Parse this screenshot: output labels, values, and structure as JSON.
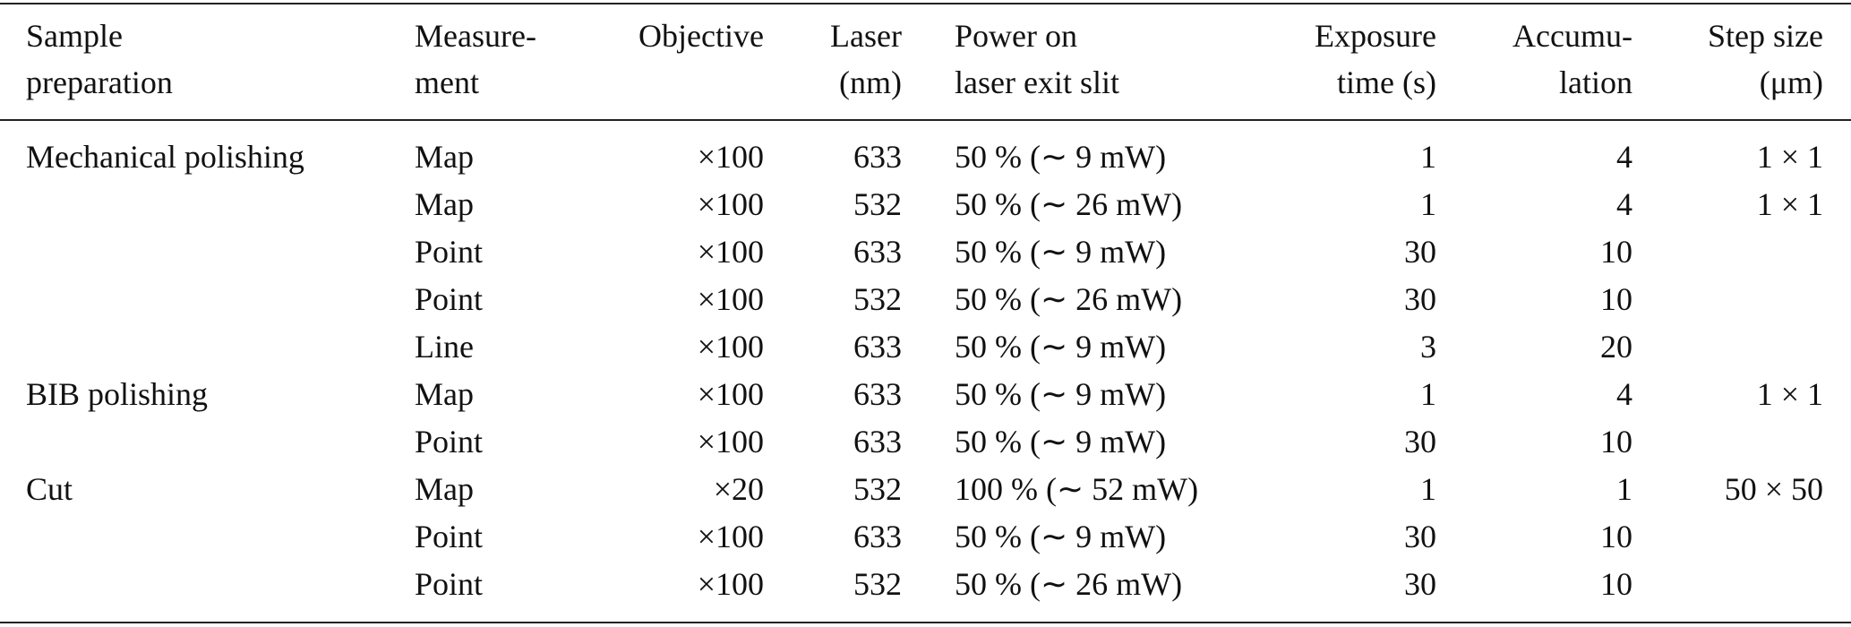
{
  "table": {
    "header": [
      [
        "Sample",
        "preparation"
      ],
      [
        "Measure-",
        "ment"
      ],
      [
        "Objective"
      ],
      [
        "Laser",
        "(nm)"
      ],
      [
        "Power on",
        "laser exit slit"
      ],
      [
        "Exposure",
        "time (s)"
      ],
      [
        "Accumu-",
        "lation"
      ],
      [
        "Step size",
        "(μm)"
      ]
    ],
    "rows": [
      {
        "sample": "Mechanical polishing",
        "measurement": "Map",
        "objective": "×100",
        "laser": 633,
        "power": "50 % (∼ 9 mW)",
        "exposure": 1,
        "accumulation": 4,
        "step": "1 × 1"
      },
      {
        "measurement": "Map",
        "objective": "×100",
        "laser": 532,
        "power": "50 % (∼ 26 mW)",
        "exposure": 1,
        "accumulation": 4,
        "step": "1 × 1"
      },
      {
        "measurement": "Point",
        "objective": "×100",
        "laser": 633,
        "power": "50 % (∼ 9 mW)",
        "exposure": 30,
        "accumulation": 10
      },
      {
        "measurement": "Point",
        "objective": "×100",
        "laser": 532,
        "power": "50 % (∼ 26 mW)",
        "exposure": 30,
        "accumulation": 10
      },
      {
        "measurement": "Line",
        "objective": "×100",
        "laser": 633,
        "power": "50 % (∼ 9 mW)",
        "exposure": 3,
        "accumulation": 20
      },
      {
        "sample": "BIB polishing",
        "measurement": "Map",
        "objective": "×100",
        "laser": 633,
        "power": "50 % (∼ 9 mW)",
        "exposure": 1,
        "accumulation": 4,
        "step": "1 × 1"
      },
      {
        "measurement": "Point",
        "objective": "×100",
        "laser": 633,
        "power": "50 % (∼ 9 mW)",
        "exposure": 30,
        "accumulation": 10
      },
      {
        "sample": "Cut",
        "measurement": "Map",
        "objective": "×20",
        "laser": 532,
        "power": "100 % (∼ 52 mW)",
        "exposure": 1,
        "accumulation": 1,
        "step": "50 × 50"
      },
      {
        "measurement": "Point",
        "objective": "×100",
        "laser": 633,
        "power": "50 % (∼ 9 mW)",
        "exposure": 30,
        "accumulation": 10
      },
      {
        "measurement": "Point",
        "objective": "×100",
        "laser": 532,
        "power": "50 % (∼ 26 mW)",
        "exposure": 30,
        "accumulation": 10
      }
    ]
  }
}
